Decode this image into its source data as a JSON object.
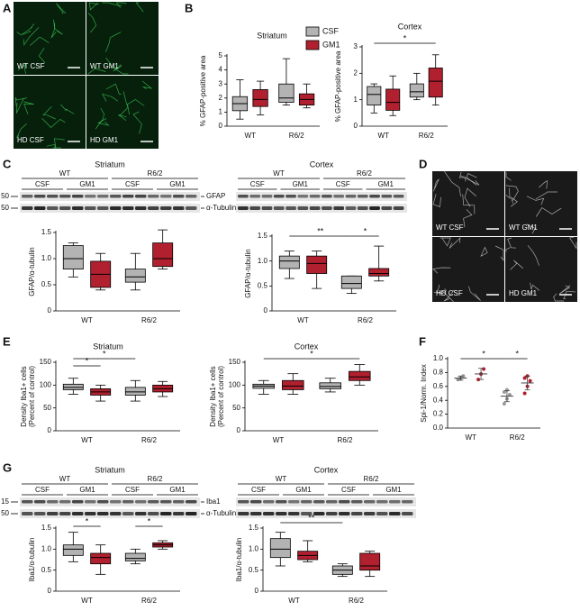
{
  "panel_labels": [
    "A",
    "B",
    "C",
    "D",
    "E",
    "F",
    "G"
  ],
  "images": [
    {
      "labels": [
        "WT CSF",
        "WT GM1",
        "HD CSF",
        "HD GM1"
      ]
    },
    {
      "labels": [
        "WT CSF",
        "WT GM1",
        "HD CSF",
        "HD GM1"
      ]
    }
  ],
  "blots": [
    {
      "title": "Striatum",
      "groups": [
        "WT",
        "R6/2"
      ],
      "conditions": [
        "CSF",
        "GM1",
        "CSF",
        "GM1"
      ],
      "markers": [
        "50",
        "50"
      ],
      "bands": [
        "GFAP",
        "α-Tubulin"
      ]
    },
    {
      "title": "Cortex",
      "groups": [
        "WT",
        "R6/2"
      ],
      "conditions": [
        "CSF",
        "GM1",
        "CSF",
        "GM1"
      ]
    },
    {
      "title": "Striatum",
      "groups": [
        "WT",
        "R6/2"
      ],
      "conditions": [
        "CSF",
        "GM1",
        "CSF",
        "GM1"
      ],
      "markers": [
        "15",
        "50"
      ],
      "bands": [
        "Iba1",
        "α-Tubulin"
      ]
    },
    {
      "title": "Cortex",
      "groups": [
        "WT",
        "R6/2"
      ],
      "conditions": [
        "CSF",
        "GM1",
        "CSF",
        "GM1"
      ]
    }
  ],
  "chart_data": [
    {
      "type": "box",
      "title": "Striatum",
      "ylabel": "% GFAP-positive area",
      "categories": [
        "WT",
        "R6/2"
      ],
      "legend": true,
      "series": [
        {
          "name": "CSF",
          "color": "#b3b3b3",
          "values": [
            [
              0.5,
              1.1,
              1.6,
              2.1,
              3.3
            ],
            [
              1.5,
              1.7,
              2.0,
              3.0,
              4.8
            ]
          ]
        },
        {
          "name": "GM1",
          "color": "#b0202e",
          "values": [
            [
              0.8,
              1.4,
              1.9,
              2.6,
              3.2
            ],
            [
              1.3,
              1.5,
              1.9,
              2.3,
              3.0
            ]
          ]
        }
      ],
      "ylim": [
        0,
        5
      ],
      "yticks": [
        0,
        1,
        2,
        3,
        4,
        5
      ],
      "annotations": []
    },
    {
      "type": "box",
      "title": "Cortex",
      "ylabel": "% GFAP-positive area",
      "categories": [
        "WT",
        "R6/2"
      ],
      "series": [
        {
          "name": "CSF",
          "color": "#b3b3b3",
          "values": [
            [
              0.5,
              0.8,
              1.2,
              1.5,
              1.6
            ],
            [
              1.0,
              1.1,
              1.3,
              1.6,
              2.0
            ]
          ]
        },
        {
          "name": "GM1",
          "color": "#b0202e",
          "values": [
            [
              0.4,
              0.6,
              0.9,
              1.4,
              1.9
            ],
            [
              0.8,
              1.1,
              1.7,
              2.2,
              2.7
            ]
          ]
        }
      ],
      "ylim": [
        0,
        3
      ],
      "yticks": [
        0,
        1,
        2,
        3
      ],
      "annotations": [
        "*"
      ]
    },
    {
      "type": "box",
      "ylabel": "GFAP/α-tubulin",
      "categories": [
        "WT",
        "R6/2"
      ],
      "series": [
        {
          "name": "CSF",
          "color": "#b3b3b3",
          "values": [
            [
              0.65,
              0.8,
              1.0,
              1.25,
              1.3
            ],
            [
              0.4,
              0.55,
              0.65,
              0.8,
              1.1
            ]
          ]
        },
        {
          "name": "GM1",
          "color": "#b0202e",
          "values": [
            [
              0.4,
              0.45,
              0.7,
              0.95,
              1.1
            ],
            [
              0.8,
              0.85,
              1.0,
              1.3,
              1.55
            ]
          ]
        }
      ],
      "ylim": [
        0,
        1.5
      ],
      "yticks": [
        0,
        0.5,
        {
          "value": 1,
          "label": "1.0"
        },
        1.5
      ],
      "annotations": []
    },
    {
      "type": "box",
      "ylabel": "GFAP/α-tubulin",
      "categories": [
        "WT",
        "R6/2"
      ],
      "series": [
        {
          "name": "CSF",
          "color": "#b3b3b3",
          "values": [
            [
              0.65,
              0.85,
              1.0,
              1.1,
              1.2
            ],
            [
              0.35,
              0.45,
              0.55,
              0.7,
              0.7
            ]
          ]
        },
        {
          "name": "GM1",
          "color": "#b0202e",
          "values": [
            [
              0.45,
              0.75,
              0.95,
              1.1,
              1.2
            ],
            [
              0.6,
              0.7,
              0.75,
              0.85,
              1.3
            ]
          ]
        }
      ],
      "ylim": [
        0,
        1.5
      ],
      "yticks": [
        0,
        0.5,
        {
          "value": 1,
          "label": "1.0"
        },
        1.5
      ],
      "annotations": [
        "**",
        "*"
      ]
    },
    {
      "type": "box",
      "title": "Striatum",
      "ylabel": [
        "Density Iba1+ cells",
        "(Percent of control)"
      ],
      "categories": [
        "WT",
        "R6/2"
      ],
      "series": [
        {
          "name": "CSF",
          "color": "#b3b3b3",
          "values": [
            [
              80,
              90,
              95,
              102,
              115
            ],
            [
              65,
              78,
              85,
              95,
              110
            ]
          ]
        },
        {
          "name": "GM1",
          "color": "#b0202e",
          "values": [
            [
              65,
              78,
              85,
              92,
              100
            ],
            [
              75,
              85,
              92,
              100,
              108
            ]
          ]
        }
      ],
      "ylim": [
        0,
        150
      ],
      "yticks": [
        0,
        50,
        100,
        150
      ],
      "annotations": [
        "*",
        "*"
      ]
    },
    {
      "type": "box",
      "title": "Cortex",
      "ylabel": [
        "Density Iba1+ cells",
        "(Percent of control)"
      ],
      "categories": [
        "WT",
        "R6/2"
      ],
      "series": [
        {
          "name": "CSF",
          "color": "#b3b3b3",
          "values": [
            [
              80,
              93,
              98,
              102,
              110
            ],
            [
              85,
              92,
              97,
              105,
              115
            ]
          ]
        },
        {
          "name": "GM1",
          "color": "#b0202e",
          "values": [
            [
              80,
              90,
              98,
              110,
              125
            ],
            [
              100,
              110,
              118,
              130,
              145
            ]
          ]
        }
      ],
      "ylim": [
        0,
        150
      ],
      "yticks": [
        0,
        50,
        100,
        150
      ],
      "annotations": [
        "*"
      ]
    },
    {
      "type": "box",
      "ylabel": "Iba1/α-tubulin",
      "categories": [
        "WT",
        "R6/2"
      ],
      "series": [
        {
          "name": "CSF",
          "color": "#b3b3b3",
          "values": [
            [
              0.7,
              0.85,
              1.0,
              1.1,
              1.4
            ],
            [
              0.65,
              0.72,
              0.78,
              0.9,
              1.0
            ]
          ]
        },
        {
          "name": "GM1",
          "color": "#b0202e",
          "values": [
            [
              0.4,
              0.65,
              0.8,
              0.9,
              1.1
            ],
            [
              1.0,
              1.05,
              1.1,
              1.15,
              1.2
            ]
          ]
        }
      ],
      "ylim": [
        0,
        1.5
      ],
      "yticks": [
        0,
        0.5,
        {
          "value": 1,
          "label": "1.0"
        },
        1.5
      ],
      "annotations": [
        "*",
        "*"
      ]
    },
    {
      "type": "box",
      "ylabel": "Iba1/α-tubulin",
      "categories": [
        "WT",
        "R6/2"
      ],
      "series": [
        {
          "name": "CSF",
          "color": "#b3b3b3",
          "values": [
            [
              0.6,
              0.8,
              1.0,
              1.25,
              1.4
            ],
            [
              0.35,
              0.4,
              0.5,
              0.6,
              0.65
            ]
          ]
        },
        {
          "name": "GM1",
          "color": "#b0202e",
          "values": [
            [
              0.7,
              0.75,
              0.85,
              0.95,
              1.2
            ],
            [
              0.35,
              0.5,
              0.6,
              0.9,
              0.95
            ]
          ]
        }
      ],
      "ylim": [
        0,
        1.5
      ],
      "yticks": [
        0,
        0.5,
        {
          "value": 1,
          "label": "1.0"
        },
        1.5
      ],
      "annotations": [
        "**"
      ]
    },
    {
      "type": "scatter",
      "ylabel": "Spi-1/Norm. Index",
      "categories": [
        "WT",
        "R6/2"
      ],
      "series": [
        {
          "name": "CSF",
          "color": "#9a9a9a",
          "values": [
            [
              0.7,
              0.72,
              0.75
            ],
            [
              0.35,
              0.42,
              0.48,
              0.52,
              0.55
            ]
          ],
          "means": [
            0.72,
            0.46
          ],
          "sd": [
            0.03,
            0.08
          ]
        },
        {
          "name": "GM1",
          "color": "#b0202e",
          "values": [
            [
              0.7,
              0.78,
              0.85
            ],
            [
              0.5,
              0.6,
              0.68,
              0.72,
              0.75
            ]
          ],
          "means": [
            0.78,
            0.65
          ],
          "sd": [
            0.08,
            0.1
          ]
        }
      ],
      "ylim": [
        0,
        1
      ],
      "yticks": [
        {
          "value": 0,
          "label": "0.0"
        },
        0.2,
        0.4,
        0.6,
        0.8,
        {
          "value": 1,
          "label": "1.0"
        }
      ],
      "annotations": [
        "*",
        "*"
      ]
    }
  ]
}
